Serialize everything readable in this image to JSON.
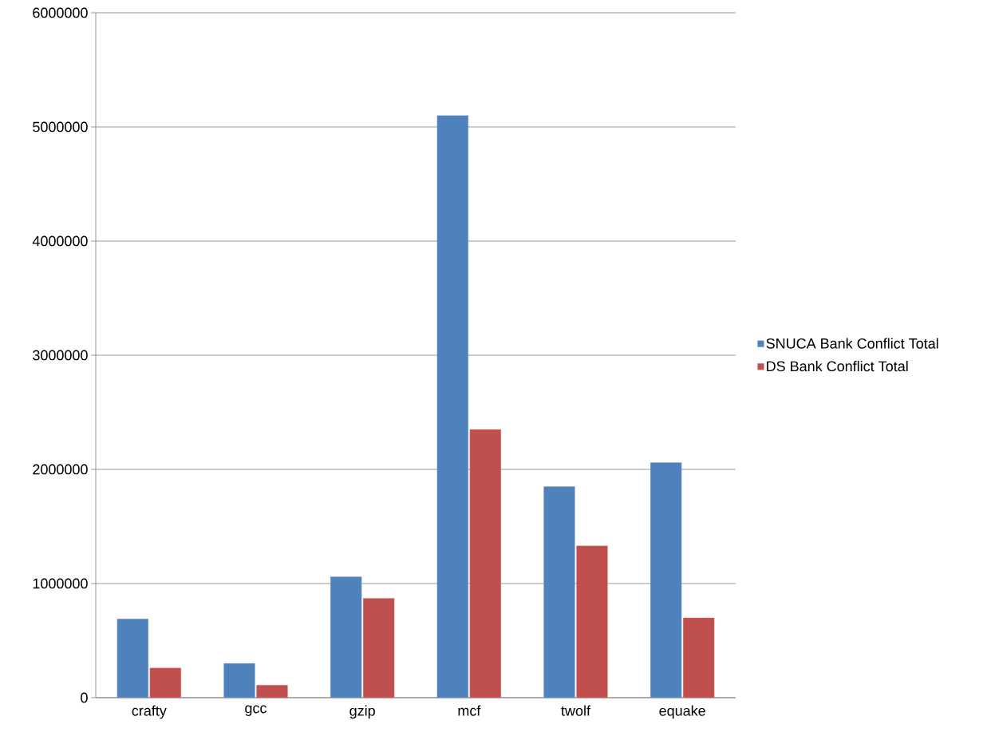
{
  "chart_data": {
    "type": "bar",
    "categories": [
      "crafty",
      "gcc",
      "gzip",
      "mcf",
      "twolf",
      "equake"
    ],
    "series": [
      {
        "name": "SNUCA Bank Conflict Total",
        "color": "#4f81bd",
        "values": [
          690000,
          300000,
          1060000,
          5100000,
          1850000,
          2060000
        ]
      },
      {
        "name": "DS Bank Conflict Total",
        "color": "#c0504d",
        "values": [
          260000,
          110000,
          870000,
          2350000,
          1330000,
          700000
        ]
      }
    ],
    "ylim": [
      0,
      6000000
    ],
    "yticks": [
      0,
      1000000,
      2000000,
      3000000,
      4000000,
      5000000,
      6000000
    ],
    "grid": "y",
    "legend": "right"
  }
}
